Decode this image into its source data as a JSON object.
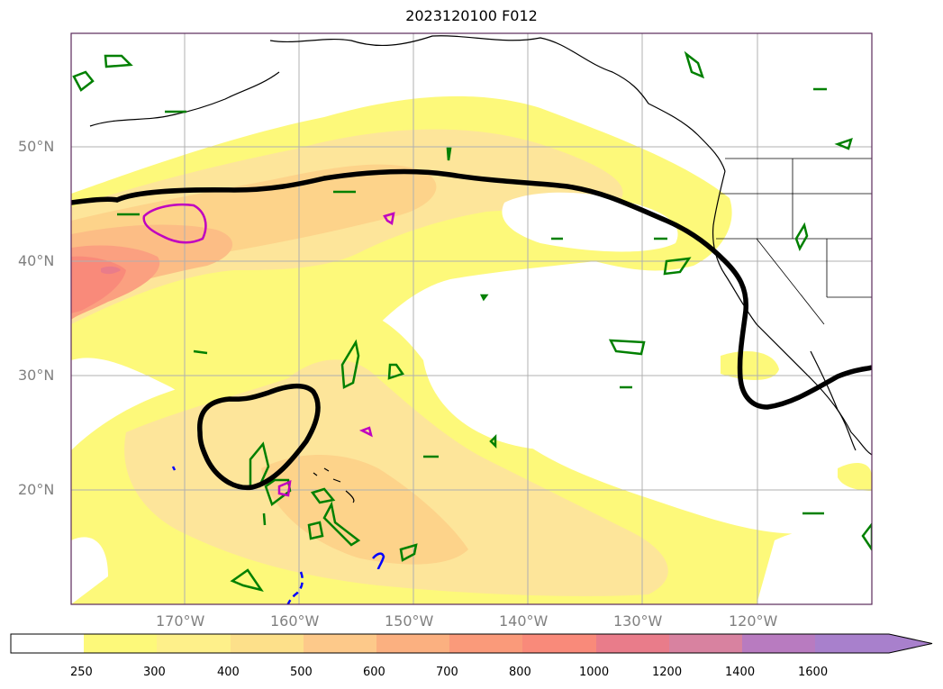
{
  "title": "2023120100 F012",
  "map": {
    "lat_labels": [
      "50°N",
      "40°N",
      "30°N",
      "20°N"
    ],
    "lon_labels": [
      "170°W",
      "160°W",
      "150°W",
      "140°W",
      "130°W",
      "120°W"
    ],
    "gridlines": true,
    "colors": {
      "background": "#ffffff",
      "coast": "#000000",
      "gridline": "#b0b0b0",
      "jet_contour": "#000000",
      "green_contour": "#008000",
      "magenta_contour": "#c000c0",
      "blue_contour": "#0000ff"
    }
  },
  "colorbar": {
    "levels": [
      "250",
      "300",
      "400",
      "500",
      "600",
      "700",
      "800",
      "1000",
      "1200",
      "1400",
      "1600"
    ],
    "colors": [
      "#ffffff",
      "#fdf97a",
      "#fef08a",
      "#fde08a",
      "#fdc98a",
      "#fbb080",
      "#fa9a7a",
      "#f98a7a",
      "#e97c8a",
      "#d882a0",
      "#b87bc0",
      "#a880cc"
    ],
    "extend": "max"
  }
}
